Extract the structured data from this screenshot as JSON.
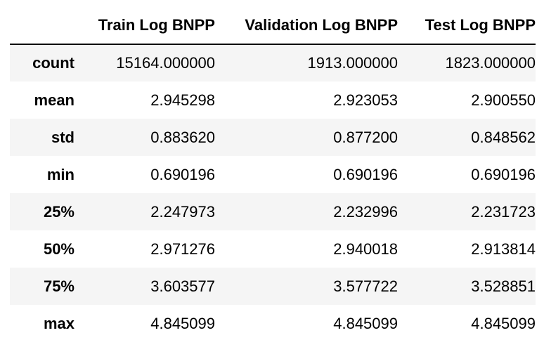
{
  "chart_data": {
    "type": "table",
    "columns": [
      "",
      "Train Log BNPP",
      "Validation Log BNPP",
      "Test Log BNPP"
    ],
    "rows": [
      {
        "label": "count",
        "values": [
          "15164.000000",
          "1913.000000",
          "1823.000000"
        ]
      },
      {
        "label": "mean",
        "values": [
          "2.945298",
          "2.923053",
          "2.900550"
        ]
      },
      {
        "label": "std",
        "values": [
          "0.883620",
          "0.877200",
          "0.848562"
        ]
      },
      {
        "label": "min",
        "values": [
          "0.690196",
          "0.690196",
          "0.690196"
        ]
      },
      {
        "label": "25%",
        "values": [
          "2.247973",
          "2.232996",
          "2.231723"
        ]
      },
      {
        "label": "50%",
        "values": [
          "2.971276",
          "2.940018",
          "2.913814"
        ]
      },
      {
        "label": "75%",
        "values": [
          "3.603577",
          "3.577722",
          "3.528851"
        ]
      },
      {
        "label": "max",
        "values": [
          "4.845099",
          "4.845099",
          "4.845099"
        ]
      }
    ]
  },
  "colors": {
    "stripe": "#f5f5f5",
    "background": "#ffffff",
    "text": "#000000"
  }
}
